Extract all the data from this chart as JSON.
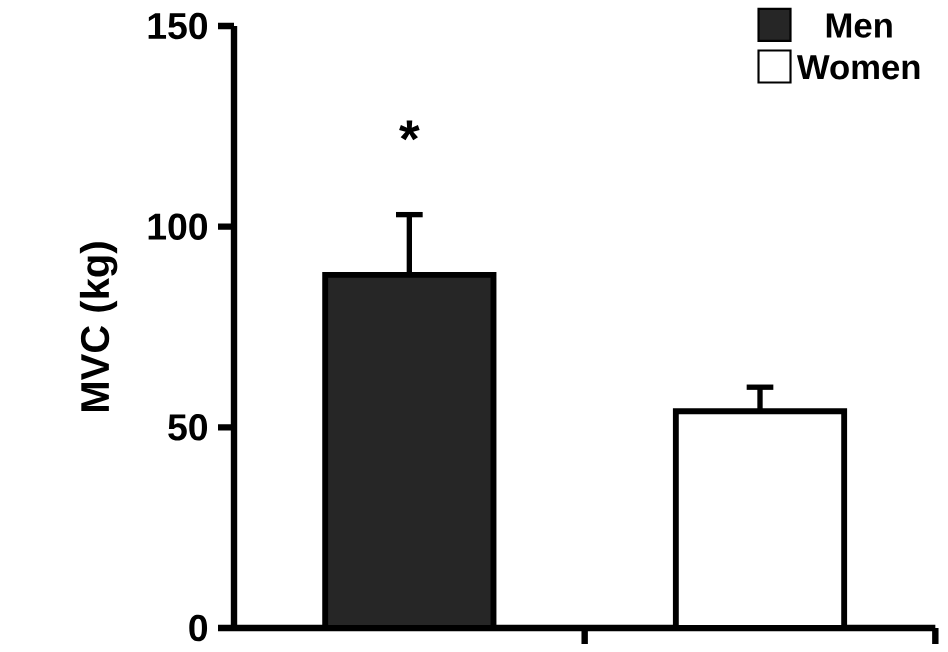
{
  "chart_data": {
    "type": "bar",
    "ylabel": "MVC (kg)",
    "categories": [
      null,
      null
    ],
    "series": [
      {
        "name": "Men",
        "color": "#262626",
        "values": [
          88,
          null
        ],
        "errors": [
          15,
          null
        ]
      },
      {
        "name": "Women",
        "color": "#ffffff",
        "values": [
          null,
          54
        ],
        "errors": [
          null,
          6
        ]
      }
    ],
    "ylim": [
      0,
      150
    ],
    "yticks": [
      0,
      50,
      100,
      150
    ],
    "legend": "top right",
    "tick_labels": "y",
    "grid": false,
    "annotations": [
      "*"
    ]
  }
}
